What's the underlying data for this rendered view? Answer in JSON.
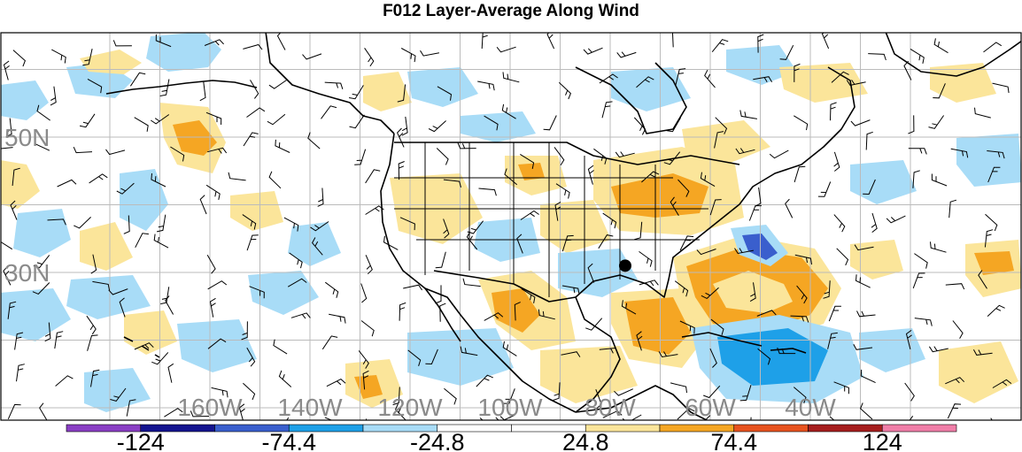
{
  "title": "F012 Layer-Average Along Wind",
  "lat_labels": [
    {
      "text": "50N",
      "lat": 50
    },
    {
      "text": "30N",
      "lat": 30
    }
  ],
  "lon_labels": [
    {
      "text": "160W",
      "lon": -160
    },
    {
      "text": "140W",
      "lon": -140
    },
    {
      "text": "120W",
      "lon": -120
    },
    {
      "text": "100W",
      "lon": -100
    },
    {
      "text": "80W",
      "lon": -80
    },
    {
      "text": "60W",
      "lon": -60
    },
    {
      "text": "40W",
      "lon": -40
    }
  ],
  "colorbar": {
    "colors": [
      "#8a3fc4",
      "#14148f",
      "#3a5fcd",
      "#1ea0e8",
      "#a8dcf7",
      "#ffffff",
      "#ffffff",
      "#fbe59a",
      "#f5a623",
      "#e8531f",
      "#a61e1e",
      "#f07ea8"
    ],
    "labels": [
      {
        "text": "-124",
        "boundary": 1
      },
      {
        "text": "-74.4",
        "boundary": 3
      },
      {
        "text": "-24.8",
        "boundary": 5
      },
      {
        "text": "24.8",
        "boundary": 7
      },
      {
        "text": "74.4",
        "boundary": 9
      },
      {
        "text": "124",
        "boundary": 11
      }
    ]
  },
  "colors": {
    "light_blue": "#a8dcf7",
    "mid_blue": "#1ea0e8",
    "dark_blue": "#3a5fcd",
    "light_yellow": "#fbe59a",
    "orange": "#f5a623",
    "grid": "#bbbbbb",
    "coast": "#000000",
    "label_gray": "#8a8a8a"
  },
  "storm_center_marker": {
    "lon": -77,
    "lat": 31
  }
}
